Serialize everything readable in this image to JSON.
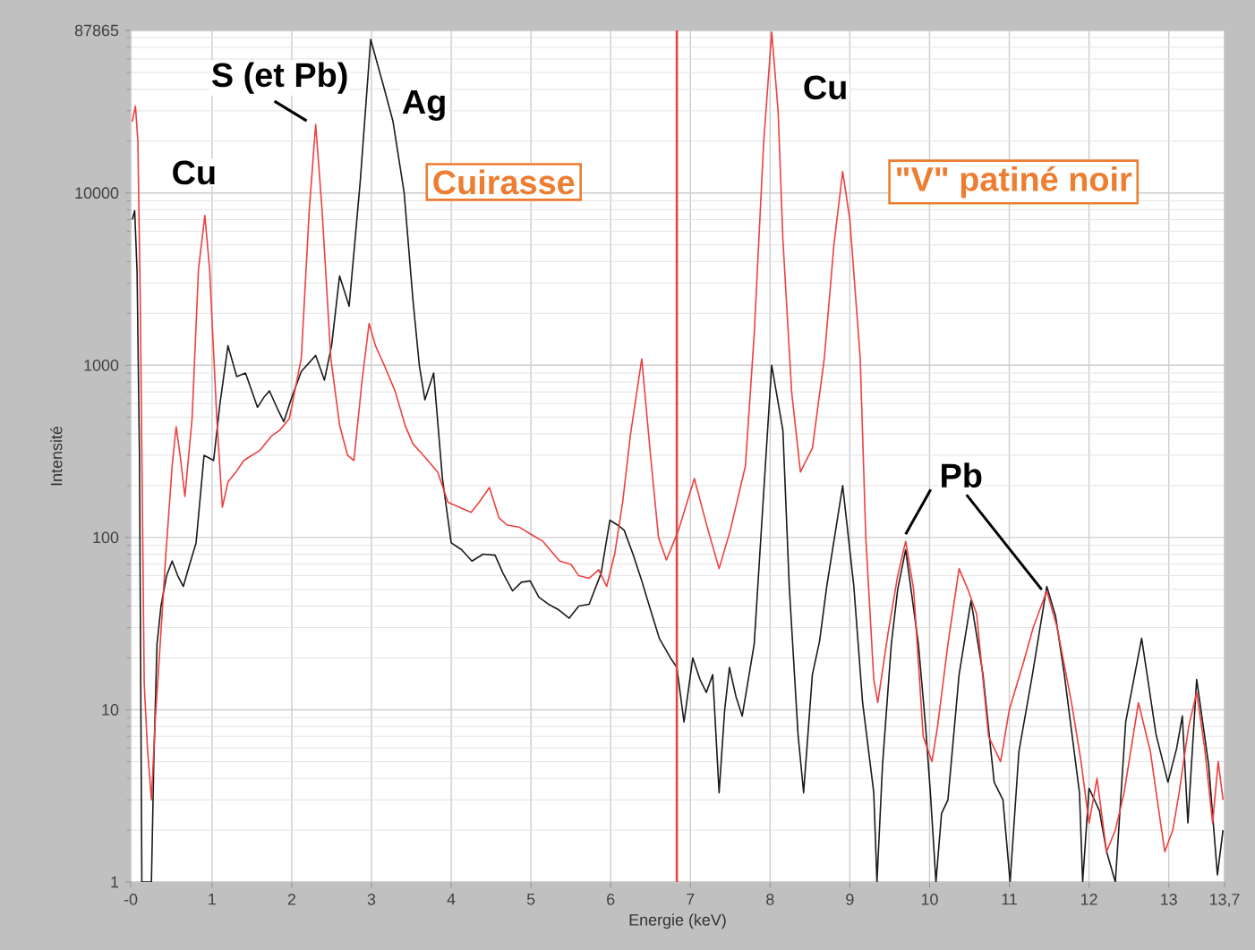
{
  "chart_data": {
    "type": "line",
    "xlabel": "Energie (keV)",
    "ylabel": "Intensité",
    "log": "y",
    "grid": true,
    "xlim": [
      -0.02,
      13.7
    ],
    "ylim": [
      1,
      87865
    ],
    "xticks": [
      {
        "value": -0.02,
        "label": "-0"
      },
      1,
      2,
      3,
      4,
      5,
      6,
      7,
      8,
      9,
      10,
      11,
      12,
      13,
      {
        "value": 13.7,
        "label": "13,7"
      }
    ],
    "yticks": [
      1,
      10,
      100,
      1000,
      10000,
      87865
    ],
    "ref_lines": [
      {
        "axis": "x",
        "value": 6.83,
        "color": "#e04848"
      }
    ],
    "annotations": [
      {
        "text": "Cu",
        "x": 0.91,
        "y": 7400
      },
      {
        "text": "S (et Pb)",
        "x": 2.3,
        "y": 25000
      },
      {
        "text": "Ag",
        "x": 2.99,
        "y": 78000
      },
      "Cuirasse",
      {
        "text": "Cu",
        "x": 8.02,
        "y": 86000
      },
      "\"V\" patiné noir",
      {
        "text": "Pb",
        "x": 9.7,
        "y": 95
      }
    ],
    "series": [
      {
        "color": "#1a1a1a",
        "x": [
          0.0,
          0.03,
          0.06,
          0.09,
          0.12,
          0.2,
          0.24,
          0.27,
          0.31,
          0.36,
          0.43,
          0.5,
          0.57,
          0.64,
          0.72,
          0.8,
          0.9,
          1.02,
          1.1,
          1.2,
          1.31,
          1.42,
          1.57,
          1.65,
          1.72,
          1.82,
          1.9,
          2.0,
          2.12,
          2.3,
          2.41,
          2.5,
          2.6,
          2.72,
          2.86,
          2.99,
          3.08,
          3.15,
          3.27,
          3.41,
          3.52,
          3.6,
          3.67,
          3.78,
          3.89,
          4.0,
          4.13,
          4.26,
          4.4,
          4.55,
          4.65,
          4.77,
          4.88,
          4.99,
          5.1,
          5.22,
          5.35,
          5.48,
          5.6,
          5.73,
          5.88,
          5.99,
          6.1,
          6.17,
          6.28,
          6.39,
          6.5,
          6.61,
          6.75,
          6.83,
          6.92,
          7.03,
          7.12,
          7.2,
          7.28,
          7.36,
          7.43,
          7.49,
          7.57,
          7.65,
          7.8,
          7.94,
          8.02,
          8.16,
          8.24,
          8.35,
          8.42,
          8.53,
          8.62,
          8.71,
          8.91,
          9.05,
          9.16,
          9.3,
          9.34,
          9.41,
          9.52,
          9.6,
          9.7,
          9.86,
          9.95,
          10.01,
          10.08,
          10.15,
          10.23,
          10.37,
          10.52,
          10.67,
          10.81,
          10.92,
          11.01,
          11.12,
          11.29,
          11.47,
          11.58,
          11.69,
          11.88,
          11.92,
          12.0,
          12.13,
          12.22,
          12.33,
          12.46,
          12.66,
          12.84,
          12.99,
          13.1,
          13.17,
          13.24,
          13.35,
          13.5,
          13.61,
          13.68
        ],
        "values": [
          7000,
          7900,
          3500,
          300,
          1,
          1,
          1,
          5,
          24,
          40,
          60,
          73,
          60,
          52,
          70,
          93,
          300,
          280,
          600,
          1300,
          860,
          900,
          570,
          650,
          710,
          560,
          470,
          650,
          920,
          1140,
          820,
          1300,
          3300,
          2200,
          11800,
          78000,
          55000,
          42000,
          26000,
          10000,
          2400,
          1000,
          630,
          900,
          220,
          93,
          85,
          73,
          80,
          79,
          62,
          49,
          55,
          56,
          45,
          41,
          38,
          34,
          40,
          41,
          62,
          126,
          117,
          110,
          80,
          56,
          38,
          26,
          20,
          17.6,
          8.5,
          20,
          15,
          12.6,
          16,
          3.3,
          10,
          17.6,
          12,
          9.2,
          24,
          260,
          1000,
          420,
          52,
          7.2,
          3.3,
          16,
          25,
          52,
          200,
          52,
          11,
          3.3,
          1,
          4.8,
          24,
          50,
          85,
          24,
          8,
          3.3,
          1,
          2.5,
          3,
          16,
          43,
          16,
          3.8,
          3,
          1,
          5.7,
          16,
          52,
          35,
          16,
          3.3,
          1,
          3.5,
          2.6,
          1.5,
          1,
          8.5,
          26,
          7.2,
          3.8,
          6,
          9.2,
          2.2,
          15,
          4.8,
          1.1,
          2
        ]
      },
      {
        "color": "#ee4040",
        "x": [
          0.0,
          0.04,
          0.07,
          0.1,
          0.15,
          0.19,
          0.24,
          0.29,
          0.35,
          0.42,
          0.5,
          0.55,
          0.6,
          0.66,
          0.75,
          0.83,
          0.91,
          0.97,
          1.06,
          1.13,
          1.2,
          1.3,
          1.4,
          1.5,
          1.6,
          1.75,
          1.85,
          1.97,
          2.12,
          2.22,
          2.3,
          2.38,
          2.49,
          2.6,
          2.7,
          2.78,
          2.88,
          2.97,
          3.05,
          3.16,
          3.3,
          3.42,
          3.52,
          3.65,
          3.83,
          3.96,
          4.1,
          4.25,
          4.35,
          4.48,
          4.6,
          4.7,
          4.85,
          4.99,
          5.15,
          5.36,
          5.5,
          5.6,
          5.73,
          5.85,
          5.95,
          6.05,
          6.15,
          6.25,
          6.39,
          6.5,
          6.6,
          6.7,
          6.85,
          7.05,
          7.2,
          7.36,
          7.5,
          7.69,
          7.8,
          7.92,
          8.02,
          8.1,
          8.16,
          8.27,
          8.38,
          8.53,
          8.68,
          8.8,
          8.91,
          9.0,
          9.13,
          9.2,
          9.3,
          9.35,
          9.48,
          9.6,
          9.7,
          9.8,
          9.92,
          10.03,
          10.1,
          10.23,
          10.37,
          10.48,
          10.59,
          10.74,
          10.89,
          11.0,
          11.18,
          11.3,
          11.47,
          11.6,
          11.78,
          11.9,
          12.0,
          12.1,
          12.22,
          12.33,
          12.44,
          12.62,
          12.77,
          12.88,
          12.95,
          13.05,
          13.13,
          13.25,
          13.35,
          13.45,
          13.55,
          13.62,
          13.68
        ],
        "values": [
          26000,
          32000,
          20000,
          2400,
          14,
          6,
          3,
          9,
          24,
          79,
          260,
          440,
          300,
          173,
          490,
          3600,
          7400,
          3600,
          490,
          150,
          210,
          240,
          280,
          300,
          320,
          390,
          420,
          490,
          1100,
          8000,
          25000,
          8000,
          1100,
          450,
          300,
          280,
          800,
          1750,
          1300,
          1000,
          700,
          450,
          350,
          300,
          240,
          160,
          150,
          140,
          160,
          195,
          130,
          118,
          115,
          105,
          95,
          73,
          70,
          60,
          58,
          65,
          52,
          80,
          160,
          400,
          1090,
          300,
          100,
          74,
          110,
          220,
          120,
          66,
          110,
          260,
          1500,
          20000,
          86000,
          30000,
          5400,
          700,
          240,
          330,
          1100,
          5000,
          13300,
          7000,
          1100,
          100,
          15,
          11,
          28,
          60,
          95,
          50,
          7,
          5,
          8,
          24,
          66,
          50,
          36,
          7,
          5,
          10,
          19,
          30,
          49,
          30,
          11,
          5,
          2.2,
          4,
          1.5,
          2,
          3.3,
          11,
          5.7,
          2.5,
          1.5,
          2,
          3.3,
          8,
          12.6,
          6,
          2.2,
          5,
          3
        ]
      }
    ]
  }
}
